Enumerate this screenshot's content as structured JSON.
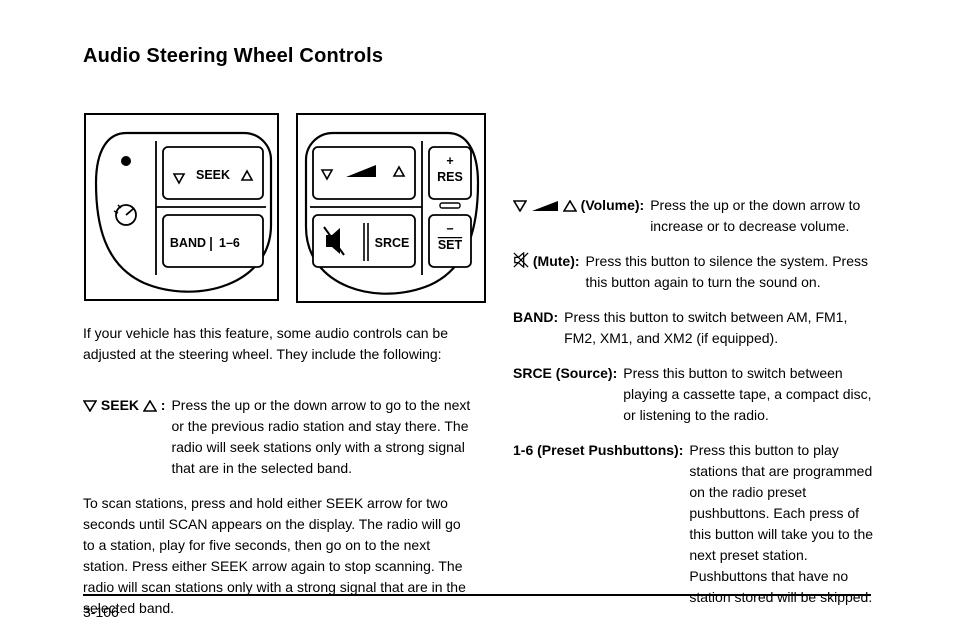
{
  "title": "Audio Steering Wheel Controls",
  "panels": {
    "left": {
      "seek_label": "SEEK",
      "band_label": "BAND",
      "preset_label": "1–6"
    },
    "right": {
      "res_label": "RES",
      "set_label": "SET",
      "srce_label": "SRCE",
      "plus": "+",
      "minus": "−"
    }
  },
  "note_prefix": "If your vehicle has this feature, some audio controls can be adjusted at the steering wheel. They include the following:",
  "left_entries": [
    {
      "label_html": "{tri-down} SEEK {tri-up} :",
      "body": "Press the up or the down arrow to go to the next or the previous radio station and stay there. The radio will seek stations only with a strong signal that are in the selected band.",
      "body2": "To scan stations, press and hold either SEEK arrow for two seconds until SCAN appears on the display. The radio will go to a station, play for five seconds, then go on to the next station. Press either SEEK arrow again to stop scanning. The radio will scan stations only with a strong signal that are in the selected band."
    }
  ],
  "right_entries": [
    {
      "label_html": "{tri-down} {wedge} {tri-up} (Volume):",
      "body": "Press the up or the down arrow to increase or to decrease volume."
    },
    {
      "label_html": "{mute} (Mute):",
      "body": "Press this button to silence the system. Press this button again to turn the sound on."
    },
    {
      "label_html": "BAND:",
      "body": "Press this button to switch between AM, FM1, FM2, XM1, and XM2 (if equipped)."
    },
    {
      "label_html": "SRCE (Source):",
      "body": "Press this button to switch between playing a cassette tape, a compact disc, or listening to the radio."
    },
    {
      "label_html": "1-6 (Preset Pushbuttons):",
      "body": "Press this button to play stations that are programmed on the radio preset pushbuttons. Each press of this button will take you to the next preset station. Pushbuttons that have no station stored will be skipped."
    }
  ],
  "page_number": "3-106",
  "colors": {
    "fg": "#000000",
    "bg": "#ffffff"
  }
}
